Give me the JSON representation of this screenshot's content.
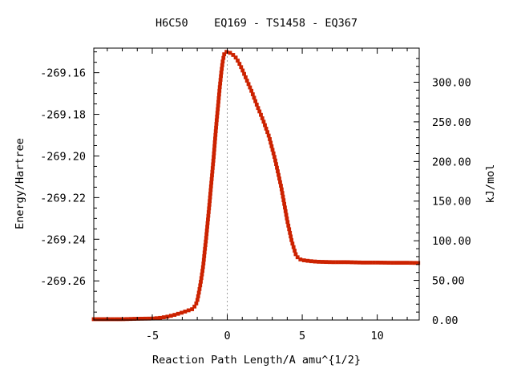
{
  "chart_data": {
    "type": "line",
    "title": "H6C50    EQ169 - TS1458 - EQ367",
    "xlabel": "Reaction Path Length/A amu^{1/2}",
    "ylabel": "Energy/Hartree",
    "y2label": "kJ/mol",
    "xlim": [
      -8.9,
      12.8
    ],
    "ylim": [
      -269.2788,
      -269.1482
    ],
    "y2lim": [
      0,
      343
    ],
    "xticks": [
      -5,
      0,
      5,
      10
    ],
    "xtick_labels": [
      "-5",
      "0",
      "5",
      "10"
    ],
    "yticks": [
      -269.26,
      -269.24,
      -269.22,
      -269.2,
      -269.18,
      -269.16
    ],
    "ytick_labels": [
      "-269.26",
      "-269.24",
      "-269.22",
      "-269.20",
      "-269.18",
      "-269.16"
    ],
    "y2ticks": [
      0,
      50,
      100,
      150,
      200,
      250,
      300
    ],
    "y2tick_labels": [
      "0.00",
      "50.00",
      "100.00",
      "150.00",
      "200.00",
      "250.00",
      "300.00"
    ],
    "grid": false,
    "ts_marker_x": 0,
    "colors": {
      "line": "#00a000",
      "marker": "#cc2200",
      "ts_line": "#9a9a9a",
      "axes": "#000000"
    },
    "series": [
      {
        "x": [
          -8.9,
          -8.0,
          -7.0,
          -6.0,
          -5.0,
          -4.5,
          -4.0,
          -3.5,
          -3.0,
          -2.6,
          -2.3,
          -2.1,
          -2.0,
          -1.9,
          -1.8,
          -1.7,
          -1.6,
          -1.5,
          -1.4,
          -1.3,
          -1.2,
          -1.1,
          -1.0,
          -0.9,
          -0.8,
          -0.7,
          -0.6,
          -0.5,
          -0.4,
          -0.3,
          -0.2,
          -0.1,
          0.0,
          0.2,
          0.4,
          0.6,
          0.8,
          1.0,
          1.3,
          1.6,
          2.0,
          2.4,
          2.8,
          3.2,
          3.6,
          4.0,
          4.3,
          4.6,
          4.8,
          5.0,
          5.2,
          5.5,
          6.0,
          7.0,
          8.0,
          9.0,
          10.0,
          11.0,
          12.0,
          12.8
        ],
        "y": [
          -269.2784,
          -269.2784,
          -269.2784,
          -269.2782,
          -269.2781,
          -269.2778,
          -269.2772,
          -269.2763,
          -269.2752,
          -269.2742,
          -269.2735,
          -269.2715,
          -269.2695,
          -269.266,
          -269.262,
          -269.2575,
          -269.2525,
          -269.2455,
          -269.239,
          -269.2315,
          -269.224,
          -269.216,
          -269.208,
          -269.2,
          -269.191,
          -269.1825,
          -269.175,
          -269.167,
          -269.16,
          -269.1545,
          -269.151,
          -269.15,
          -269.15,
          -269.1505,
          -269.1515,
          -269.153,
          -269.1555,
          -269.1585,
          -269.1635,
          -269.1685,
          -269.176,
          -269.183,
          -269.191,
          -269.202,
          -269.215,
          -269.231,
          -269.241,
          -269.248,
          -269.2495,
          -269.25,
          -269.2502,
          -269.2505,
          -269.2508,
          -269.251,
          -269.251,
          -269.2512,
          -269.2512,
          -269.2513,
          -269.2513,
          -269.2514
        ]
      }
    ]
  }
}
